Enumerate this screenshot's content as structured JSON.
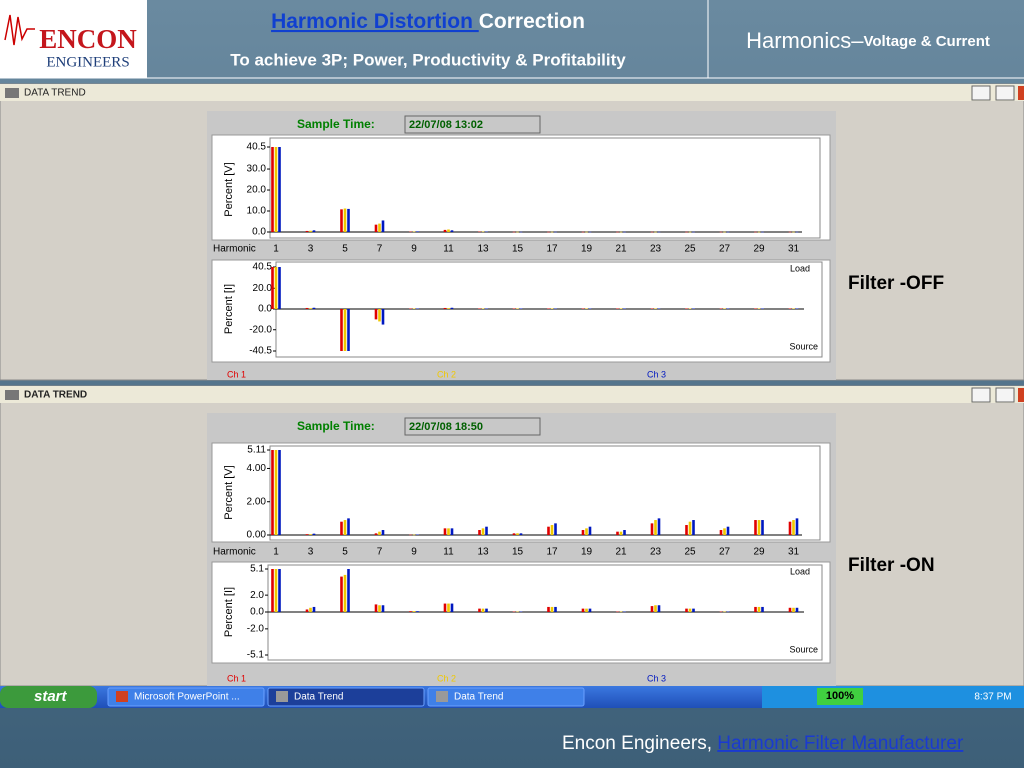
{
  "header": {
    "logo_top": "ENCON",
    "logo_bottom": "ENGINEERS",
    "title_link": "Harmonic Distortion ",
    "title_rest": "Correction",
    "subtitle": "To achieve 3P; Power, Productivity & Profitability",
    "right_title": "Harmonics–",
    "right_subtitle": "Voltage & Current"
  },
  "windows": [
    {
      "title": "DATA TREND",
      "sample_label": "Sample Time:",
      "sample_time": "22/07/08 13:02",
      "filter_label": "Filter -OFF"
    },
    {
      "title": "DATA TREND",
      "sample_label": "Sample Time:",
      "sample_time": "22/07/08 18:50",
      "filter_label": "Filter -ON"
    }
  ],
  "chart_data": [
    {
      "type": "bar",
      "y_label": "Percent [V]",
      "x_label": "Harmonic",
      "categories": [
        "1",
        "3",
        "5",
        "7",
        "9",
        "11",
        "13",
        "15",
        "17",
        "19",
        "21",
        "23",
        "25",
        "27",
        "29",
        "31"
      ],
      "ylim": [
        0,
        40.5
      ],
      "yticks": [
        {
          "value": 0,
          "label": "0.0"
        },
        {
          "value": 10,
          "label": "10.0"
        },
        {
          "value": 20,
          "label": "20.0"
        },
        {
          "value": 30,
          "label": "30.0"
        },
        40.5
      ],
      "series": [
        {
          "color": "#e00000",
          "values": [
            40.5,
            0.5,
            10.8,
            3.5,
            0.2,
            1.0,
            0.2,
            0.1,
            0.1,
            0.1,
            0.1,
            0.1,
            0.1,
            0.1,
            0.1,
            0.1
          ]
        },
        {
          "color": "#f0c800",
          "values": [
            40.5,
            0.6,
            11.2,
            4.0,
            0.2,
            1.2,
            0.2,
            0.1,
            0.1,
            0.1,
            0.1,
            0.1,
            0.1,
            0.1,
            0.1,
            0.1
          ]
        },
        {
          "color": "#0018c0",
          "values": [
            40.5,
            0.8,
            11.0,
            5.5,
            0.3,
            0.8,
            0.2,
            0.1,
            0.1,
            0.1,
            0.1,
            0.1,
            0.1,
            0.1,
            0.1,
            0.1
          ]
        }
      ]
    },
    {
      "type": "bar",
      "y_label": "Percent [I]",
      "annotations": [
        "Load",
        "Source"
      ],
      "ylim": [
        -40.5,
        40.5
      ],
      "yticks": [
        -40.5,
        {
          "value": -20,
          "label": "-20.0"
        },
        {
          "value": 0,
          "label": "0.0"
        },
        {
          "value": 20,
          "label": "20.0"
        },
        40.5
      ],
      "series": [
        {
          "name": "Ch 1",
          "color": "#e00000",
          "values": [
            40.5,
            1.0,
            -40.5,
            -10,
            0.5,
            1.0,
            0.5,
            0.5,
            0.5,
            0.5,
            0.5,
            0.5,
            0.5,
            0.5,
            0.5,
            0.5
          ]
        },
        {
          "name": "Ch 2",
          "color": "#f0c800",
          "values": [
            40.5,
            0.8,
            -40.5,
            -12,
            0.5,
            0.8,
            0.5,
            0.5,
            0.5,
            0.5,
            0.5,
            0.5,
            0.5,
            0.5,
            0.5,
            0.5
          ]
        },
        {
          "name": "Ch 3",
          "color": "#0018c0",
          "values": [
            40.5,
            1.2,
            -40.5,
            -15,
            0.5,
            1.2,
            0.5,
            0.5,
            0.5,
            0.5,
            0.5,
            0.5,
            0.5,
            0.5,
            0.5,
            0.5
          ]
        }
      ]
    },
    {
      "type": "bar",
      "y_label": "Percent [V]",
      "x_label": "Harmonic",
      "categories": [
        "1",
        "3",
        "5",
        "7",
        "9",
        "11",
        "13",
        "15",
        "17",
        "19",
        "21",
        "23",
        "25",
        "27",
        "29",
        "31"
      ],
      "ylim": [
        0,
        5.11
      ],
      "yticks": [
        {
          "value": 0,
          "label": "0.00"
        },
        {
          "value": 2,
          "label": "2.00"
        },
        {
          "value": 4,
          "label": "4.00"
        },
        5.11
      ],
      "series": [
        {
          "color": "#e00000",
          "values": [
            5.11,
            0.05,
            0.8,
            0.1,
            0.02,
            0.4,
            0.3,
            0.1,
            0.5,
            0.3,
            0.2,
            0.7,
            0.6,
            0.3,
            0.9,
            0.8
          ]
        },
        {
          "color": "#f0c800",
          "values": [
            5.11,
            0.05,
            0.9,
            0.2,
            0.02,
            0.4,
            0.4,
            0.1,
            0.6,
            0.4,
            0.2,
            0.9,
            0.8,
            0.4,
            0.9,
            0.9
          ]
        },
        {
          "color": "#0018c0",
          "values": [
            5.11,
            0.08,
            1.0,
            0.3,
            0.03,
            0.4,
            0.5,
            0.1,
            0.7,
            0.5,
            0.3,
            1.0,
            0.9,
            0.5,
            0.9,
            1.0
          ]
        }
      ]
    },
    {
      "type": "bar",
      "y_label": "Percent [I]",
      "annotations": [
        "Load",
        "Source"
      ],
      "ylim": [
        -5.1,
        5.1
      ],
      "yticks": [
        -5.1,
        {
          "value": -2,
          "label": "-2.0"
        },
        {
          "value": 0,
          "label": "0.0"
        },
        {
          "value": 2,
          "label": "2.0"
        },
        5.1
      ],
      "series": [
        {
          "name": "Ch 1",
          "color": "#e00000",
          "values": [
            5.1,
            0.3,
            4.2,
            0.9,
            0.1,
            1.0,
            0.4,
            0.05,
            0.6,
            0.4,
            0.05,
            0.7,
            0.4,
            0.05,
            0.6,
            0.5
          ]
        },
        {
          "name": "Ch 2",
          "color": "#f0c800",
          "values": [
            5.1,
            0.5,
            4.4,
            0.8,
            0.1,
            1.0,
            0.4,
            0.05,
            0.6,
            0.4,
            0.05,
            0.8,
            0.4,
            0.05,
            0.6,
            0.5
          ]
        },
        {
          "name": "Ch 3",
          "color": "#0018c0",
          "values": [
            5.1,
            0.6,
            5.1,
            0.8,
            0.1,
            1.0,
            0.4,
            0.05,
            0.6,
            0.4,
            0.05,
            0.8,
            0.4,
            0.05,
            0.6,
            0.5
          ]
        }
      ]
    }
  ],
  "taskbar": {
    "start": "start",
    "items": [
      "Microsoft PowerPoint ...",
      "Data Trend",
      "Data Trend"
    ],
    "zoom": "100%",
    "clock": "8:37 PM"
  },
  "footer": {
    "text": "Encon Engineers, ",
    "link": "Harmonic Filter Manufacturer"
  }
}
